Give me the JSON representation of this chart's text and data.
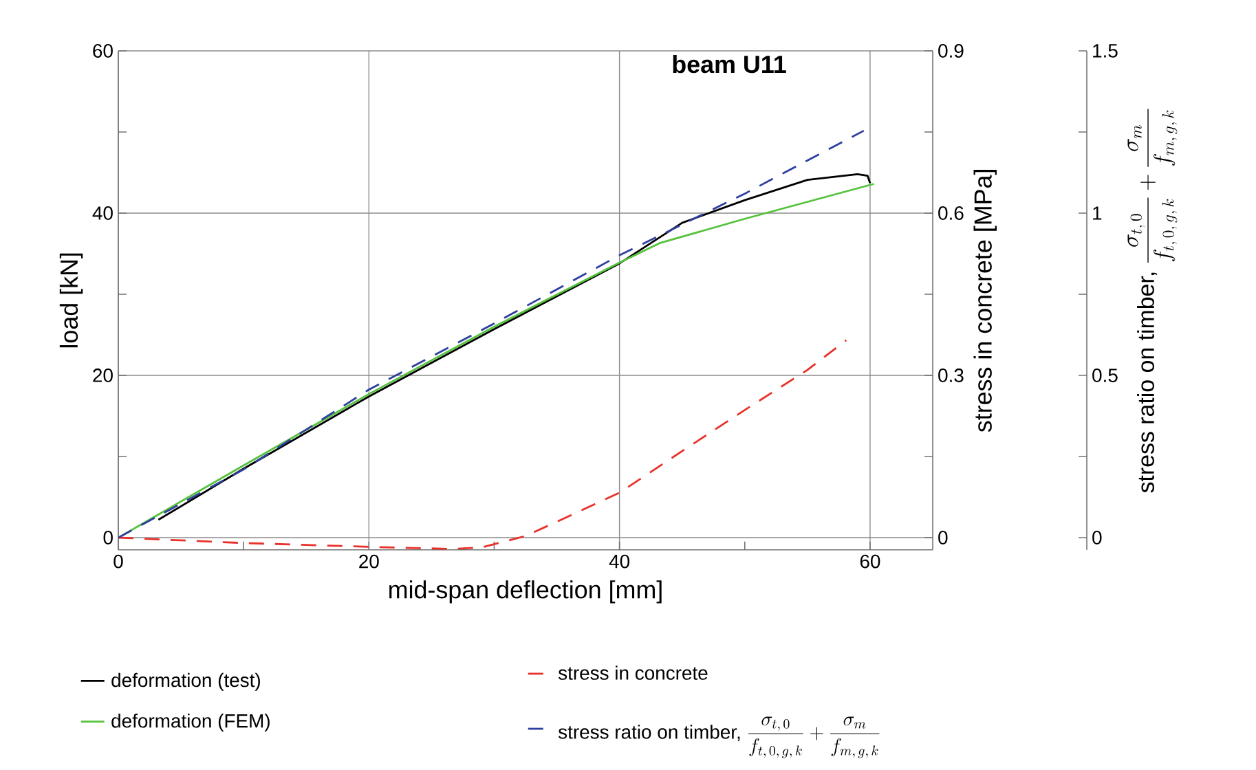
{
  "chart_data": {
    "type": "line",
    "title": "beam U11",
    "xlabel": "mid-span deflection [mm]",
    "ylabel": "load [kN]",
    "y2label": "stress in concrete [MPa]",
    "y3label": "\\text{stress ratio on timber, }\\dfrac{\\sigma_{t,\\,0}}{f_{t,\\,0,\\,g,\\,k}}+\\dfrac{\\sigma_{m}}{f_{m,\\,g,\\,k}}",
    "xlim": [
      0,
      65
    ],
    "xticks": [
      0,
      {
        "value": 10,
        "label": null
      },
      20,
      {
        "value": 30,
        "label": null
      },
      40,
      {
        "value": 50,
        "label": null
      },
      60
    ],
    "ylim": [
      -1.5,
      60
    ],
    "yticks": [
      0,
      {
        "value": 10,
        "label": null
      },
      20,
      {
        "value": 30,
        "label": null
      },
      40,
      {
        "value": 50,
        "label": null
      },
      60
    ],
    "y2lim": [
      -0.0225,
      0.9
    ],
    "y2ticks": [
      0,
      {
        "value": 0.15,
        "label": null
      },
      0.3,
      {
        "value": 0.45,
        "label": null
      },
      0.6,
      {
        "value": 0.75,
        "label": null
      },
      0.9
    ],
    "y3lim": [
      -0.0375,
      1.5
    ],
    "y3ticks": [
      0,
      {
        "value": 0.25,
        "label": null
      },
      0.5,
      {
        "value": 0.75,
        "label": null
      },
      1,
      {
        "value": 1.25,
        "label": null
      },
      1.5
    ],
    "grid": true,
    "legend": "bottom",
    "series": [
      {
        "name": "deformation (test)",
        "color": "#000000",
        "line_style": "solid",
        "x": [
          3.2,
          10,
          20,
          30,
          40,
          45,
          50,
          55,
          59,
          59.8,
          60
        ],
        "values": [
          2.2,
          8.5,
          17.4,
          25.7,
          33.8,
          38.8,
          41.6,
          44.1,
          44.8,
          44.6,
          43.7
        ]
      },
      {
        "name": "deformation (FEM)",
        "color": "#55c23c",
        "line_style": "solid",
        "x": [
          0,
          10,
          20,
          30,
          40,
          43.2,
          50,
          60.3
        ],
        "values": [
          0,
          8.9,
          17.7,
          26,
          33.9,
          36.3,
          39.3,
          43.6
        ]
      },
      {
        "name": "stress in concrete",
        "color": "#e8312a",
        "line_style": "dashed",
        "axis": "y2",
        "x": [
          0,
          10,
          20,
          26.6,
          29,
          32.5,
          36,
          40,
          45,
          50,
          55,
          58.1
        ],
        "values": [
          0,
          -0.01,
          -0.017,
          -0.021,
          -0.018,
          0.003,
          0.04,
          0.083,
          0.16,
          0.236,
          0.31,
          0.365
        ]
      },
      {
        "name": "\\text{stress ratio on timber, }\\dfrac{\\sigma_{t,\\,0}}{f_{t,\\,0,\\,g,\\,k}}+\\dfrac{\\sigma_{m}}{f_{m,\\,g,\\,k}}",
        "color": "#2f3f9e",
        "line_style": "dashed",
        "axis": "y3",
        "x": [
          0,
          10,
          20,
          30,
          40,
          50,
          59.5
        ],
        "values": [
          0,
          0.21,
          0.456,
          0.66,
          0.87,
          1.06,
          1.254
        ]
      }
    ]
  }
}
